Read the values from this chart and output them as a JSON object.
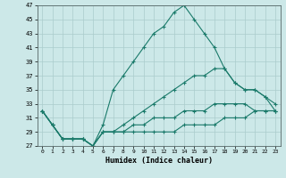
{
  "xlabel": "Humidex (Indice chaleur)",
  "background_color": "#cce8e8",
  "grid_color": "#aacccc",
  "line_color": "#1a7a6a",
  "xlim": [
    -0.5,
    23.5
  ],
  "ylim": [
    27,
    47
  ],
  "yticks": [
    27,
    29,
    31,
    33,
    35,
    37,
    39,
    41,
    43,
    45,
    47
  ],
  "xticks": [
    0,
    1,
    2,
    3,
    4,
    5,
    6,
    7,
    8,
    9,
    10,
    11,
    12,
    13,
    14,
    15,
    16,
    17,
    18,
    19,
    20,
    21,
    22,
    23
  ],
  "series": [
    [
      32,
      30,
      28,
      28,
      28,
      27,
      30,
      35,
      37,
      39,
      41,
      43,
      44,
      46,
      47,
      45,
      43,
      41,
      38,
      36,
      35,
      35,
      34,
      33
    ],
    [
      32,
      30,
      28,
      28,
      28,
      27,
      29,
      29,
      30,
      31,
      32,
      33,
      34,
      35,
      36,
      37,
      37,
      38,
      38,
      36,
      35,
      35,
      34,
      32
    ],
    [
      32,
      30,
      28,
      28,
      28,
      27,
      29,
      29,
      29,
      30,
      30,
      31,
      31,
      31,
      32,
      32,
      32,
      33,
      33,
      33,
      33,
      32,
      32,
      32
    ],
    [
      32,
      30,
      28,
      28,
      28,
      27,
      29,
      29,
      29,
      29,
      29,
      29,
      29,
      29,
      30,
      30,
      30,
      30,
      31,
      31,
      31,
      32,
      32,
      32
    ]
  ]
}
